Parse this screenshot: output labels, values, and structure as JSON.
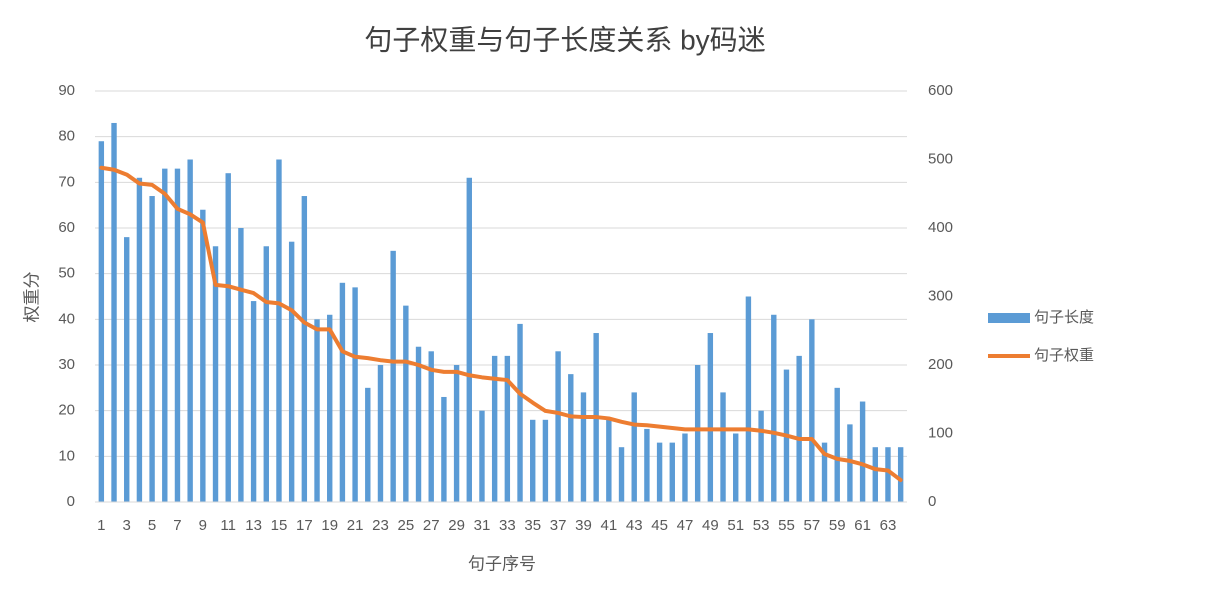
{
  "chart_data": {
    "type": "bar",
    "title": "句子权重与句子长度关系 by码迷",
    "xlabel": "句子序号",
    "ylabel": "权重分",
    "categories": [
      1,
      null,
      3,
      null,
      5,
      null,
      7,
      null,
      9,
      null,
      11,
      null,
      13,
      null,
      15,
      null,
      17,
      null,
      19,
      null,
      21,
      null,
      23,
      null,
      25,
      null,
      27,
      null,
      29,
      null,
      31,
      null,
      33,
      null,
      35,
      null,
      37,
      null,
      39,
      null,
      41,
      null,
      43,
      null,
      45,
      null,
      47,
      null,
      49,
      null,
      51,
      null,
      53,
      null,
      55,
      null,
      57,
      null,
      59,
      null,
      61,
      null,
      63,
      null
    ],
    "series": [
      {
        "name": "句子长度",
        "type": "bar",
        "color": "#5b9bd5",
        "axis": "y",
        "values": [
          79,
          83,
          58,
          71,
          67,
          73,
          73,
          75,
          64,
          56,
          72,
          60,
          44,
          56,
          75,
          57,
          67,
          40,
          41,
          48,
          47,
          25,
          30,
          55,
          43,
          34,
          33,
          23,
          30,
          71,
          20,
          32,
          32,
          39,
          18,
          18,
          33,
          28,
          24,
          37,
          18,
          12,
          24,
          16,
          13,
          13,
          15,
          30,
          37,
          24,
          15,
          45,
          20,
          41,
          29,
          32,
          40,
          13,
          25,
          17,
          22,
          12,
          12,
          12
        ]
      },
      {
        "name": "句子权重",
        "type": "line",
        "color": "#ed7d31",
        "axis": "y2",
        "values": [
          488,
          485,
          478,
          465,
          463,
          450,
          428,
          420,
          408,
          317,
          315,
          310,
          305,
          292,
          290,
          280,
          262,
          252,
          252,
          220,
          212,
          210,
          207,
          205,
          205,
          200,
          193,
          190,
          190,
          185,
          182,
          180,
          178,
          158,
          145,
          133,
          130,
          125,
          124,
          124,
          122,
          117,
          113,
          112,
          110,
          108,
          106,
          106,
          106,
          106,
          106,
          106,
          104,
          101,
          97,
          92,
          92,
          70,
          63,
          60,
          55,
          48,
          46,
          32
        ]
      }
    ],
    "ylim": [
      0,
      90
    ],
    "yticks": [
      0,
      10,
      20,
      30,
      40,
      50,
      60,
      70,
      80,
      90
    ],
    "y2lim": [
      0,
      600
    ],
    "y2ticks": [
      0,
      100,
      200,
      300,
      400,
      500,
      600
    ],
    "grid": true,
    "legend": "right"
  }
}
